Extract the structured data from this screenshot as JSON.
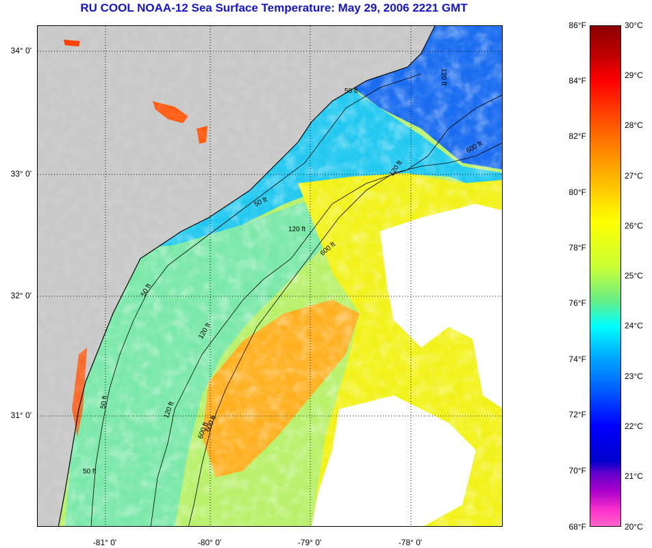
{
  "title": "RU COOL  NOAA-12  Sea Surface Temperature:  May 29, 2006 2221 GMT",
  "map": {
    "lat_labels": [
      "34° 0'",
      "33° 0'",
      "32° 0'",
      "31° 0'"
    ],
    "lon_labels": [
      "-81° 0'",
      "-80° 0'",
      "-79° 0'",
      "-78° 0'"
    ],
    "contour_labels": [
      "50 ft",
      "120 ft",
      "600 ft",
      "50 ft",
      "120 ft",
      "600 ft",
      "50 ft",
      "120 ft",
      "600 ft",
      "50 ft",
      "120 ft",
      "50 ft",
      "120 ft",
      "600 ft"
    ],
    "colors": {
      "land": "#c8c8c8",
      "cloud": "#ffffff",
      "grid": "#000000"
    }
  },
  "colorbar": {
    "fahrenheit": [
      "86°F",
      "84°F",
      "82°F",
      "80°F",
      "78°F",
      "76°F",
      "74°F",
      "72°F",
      "70°F",
      "68°F"
    ],
    "celsius": [
      "30°C",
      "29°C",
      "28°C",
      "27°C",
      "26°C",
      "25°C",
      "24°C",
      "23°C",
      "22°C",
      "21°C",
      "20°C"
    ],
    "range_f": [
      68,
      86
    ],
    "range_c": [
      20,
      30
    ]
  }
}
